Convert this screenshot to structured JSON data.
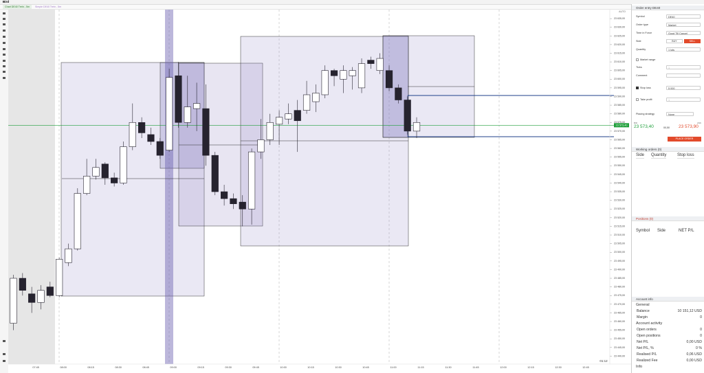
{
  "window": {
    "title": "Bird"
  },
  "tabs": [
    "Chart DE40 Trein - 5m",
    "Simple DE40 Trein - 5m"
  ],
  "chart_toolbar": {
    "timeframes": "Timeframes"
  },
  "chart_data": {
    "type": "candlestick",
    "scale_mode": "AUTO",
    "countdown": "01:12",
    "last_price": {
      "value": 23573.4,
      "label": "23 573,40"
    },
    "last_price_color": "#1e9e3a",
    "up_color": "#ffffff",
    "down_color": "#26232f",
    "x": [
      null,
      null,
      "07:45",
      null,
      null,
      "08:00",
      null,
      null,
      "08:15",
      null,
      null,
      "08:30",
      null,
      null,
      "08:45",
      null,
      null,
      "09:00",
      null,
      null,
      "09:15",
      null,
      null,
      "09:30",
      null,
      null,
      "09:45",
      null,
      null,
      "10:00",
      null,
      null,
      "10:15",
      null,
      null,
      "10:30",
      null,
      null,
      "10:45",
      null,
      null,
      "11:00",
      null,
      null,
      "11:15",
      null,
      null,
      "11:30",
      null,
      null,
      "11:45",
      null,
      null,
      "12:00",
      null,
      null,
      "12:15",
      null,
      null,
      "12:30",
      null,
      null,
      "12:45",
      null,
      null
    ],
    "open": [
      23459,
      23485,
      23476,
      23471,
      23480,
      23475,
      23494,
      23502,
      23534,
      23544,
      23551,
      23543,
      23540,
      23561,
      23575,
      23568,
      23564,
      23559,
      23602,
      23575,
      23583,
      23583,
      23556,
      23535,
      23531,
      23529,
      23525,
      23558,
      23565,
      23574,
      23577,
      23582,
      23582,
      23587,
      23591,
      23605,
      23600,
      23602,
      23595,
      23611,
      23605,
      23605,
      23595,
      23588,
      23570,
      null,
      null,
      null,
      null,
      null,
      null,
      null,
      null,
      null,
      null,
      null,
      null,
      null,
      null,
      null,
      null,
      null,
      null,
      null,
      null
    ],
    "high": [
      23487,
      23488,
      23480,
      23481,
      23483,
      23497,
      23505,
      23537,
      23554,
      23554,
      23552,
      23546,
      23564,
      23586,
      23578,
      23572,
      23566,
      23606,
      23610,
      23602,
      23598,
      23597,
      23558,
      23539,
      23534,
      23533,
      23560,
      23577,
      23580,
      23582,
      23586,
      23588,
      23599,
      23597,
      23608,
      23606,
      23608,
      23607,
      23612,
      23613,
      23615,
      23608,
      23597,
      23590,
      23578,
      null,
      null,
      null,
      null,
      null,
      null,
      null,
      null,
      null,
      null,
      null,
      null,
      null,
      null,
      null,
      null,
      null,
      null,
      null,
      null
    ],
    "low": [
      23455,
      23475,
      23465,
      23467,
      23474,
      23474,
      23492,
      23501,
      23533,
      23542,
      23539,
      23538,
      23539,
      23559,
      23566,
      23562,
      23554,
      23558,
      23572,
      23572,
      23570,
      23550,
      23533,
      23527,
      23525,
      23515,
      23516,
      23554,
      23562,
      23562,
      23574,
      23558,
      23580,
      23581,
      23589,
      23596,
      23592,
      23594,
      23592,
      23606,
      23603,
      23593,
      23586,
      23568,
      23566,
      null,
      null,
      null,
      null,
      null,
      null,
      null,
      null,
      null,
      null,
      null,
      null,
      null,
      null,
      null,
      null,
      null,
      null,
      null,
      null
    ],
    "close": [
      23485,
      23478,
      23471,
      23478,
      23475,
      23496,
      23502,
      23534,
      23544,
      23549,
      23543,
      23540,
      23561,
      23575,
      23569,
      23564,
      23556,
      23601,
      23575,
      23584,
      23586,
      23556,
      23535,
      23531,
      23528,
      23525,
      23558,
      23565,
      23575,
      23578,
      23580,
      23576,
      23591,
      23592,
      23605,
      23602,
      23605,
      23605,
      23609,
      23609,
      23612,
      23595,
      23588,
      23570,
      23575,
      null,
      null,
      null,
      null,
      null,
      null,
      null,
      null,
      null,
      null,
      null,
      null,
      null,
      null,
      null,
      null,
      null,
      null,
      null,
      null
    ],
    "ylim": [
      23436.6,
      23640.2
    ],
    "yticks": [
      {
        "value": 23440,
        "label": "23 440,00"
      },
      {
        "value": 23445,
        "label": "23 445,00"
      },
      {
        "value": 23450,
        "label": "23 450,00"
      },
      {
        "value": 23455,
        "label": "23 455,00"
      },
      {
        "value": 23460,
        "label": "23 460,00"
      },
      {
        "value": 23465,
        "label": "23 465,00"
      },
      {
        "value": 23470,
        "label": "23 470,00"
      },
      {
        "value": 23475,
        "label": "23 475,00"
      },
      {
        "value": 23480,
        "label": "23 480,00"
      },
      {
        "value": 23485,
        "label": "23 485,00"
      },
      {
        "value": 23490,
        "label": "23 490,00"
      },
      {
        "value": 23495,
        "label": "23 495,00"
      },
      {
        "value": 23500,
        "label": "23 500,00"
      },
      {
        "value": 23505,
        "label": "23 505,00"
      },
      {
        "value": 23510,
        "label": "23 510,00"
      },
      {
        "value": 23515,
        "label": "23 515,00"
      },
      {
        "value": 23520,
        "label": "23 520,00"
      },
      {
        "value": 23525,
        "label": "23 525,00"
      },
      {
        "value": 23530,
        "label": "23 530,00"
      },
      {
        "value": 23535,
        "label": "23 535,00"
      },
      {
        "value": 23540,
        "label": "23 540,00"
      },
      {
        "value": 23545,
        "label": "23 545,00"
      },
      {
        "value": 23550,
        "label": "23 550,00"
      },
      {
        "value": 23555,
        "label": "23 555,00"
      },
      {
        "value": 23560,
        "label": "23 560,00"
      },
      {
        "value": 23565,
        "label": "23 565,00"
      },
      {
        "value": 23570,
        "label": "23 570,00"
      },
      {
        "value": 23575,
        "label": "23 575,00"
      },
      {
        "value": 23580,
        "label": "23 580,00"
      },
      {
        "value": 23585,
        "label": "23 585,00"
      },
      {
        "value": 23590,
        "label": "23 590,00"
      },
      {
        "value": 23595,
        "label": "23 595,00"
      },
      {
        "value": 23600,
        "label": "23 600,00"
      },
      {
        "value": 23605,
        "label": "23 605,00"
      },
      {
        "value": 23610,
        "label": "23 610,00"
      },
      {
        "value": 23615,
        "label": "23 615,00"
      },
      {
        "value": 23620,
        "label": "23 620,00"
      },
      {
        "value": 23625,
        "label": "23 625,00"
      },
      {
        "value": 23630,
        "label": "23 630,00"
      },
      {
        "value": 23635,
        "label": "23 635,00"
      }
    ]
  },
  "order_entry": {
    "title": "Order entry DE40",
    "fields": [
      {
        "label": "Symbol",
        "value": "DE40"
      },
      {
        "label": "Order type",
        "value": "Market"
      },
      {
        "label": "Time in Force",
        "value": "Good Till Cancel"
      }
    ],
    "side_label": "Side",
    "buy": "BUY",
    "sell": "SELL",
    "quantity_label": "Quantity",
    "quantity": "1 lots",
    "market_range": "Market range",
    "ticks_label": "Ticks",
    "ticks": "1",
    "comment_label": "Comment",
    "stop_loss_label": "Stop loss",
    "stop_loss": "5 000",
    "take_profit_label": "Take profit",
    "take_profit": "1",
    "placing_strategy_label": "Placing strategy",
    "placing_strategy": "None",
    "bid_label": "BID",
    "bid": "23 573,40",
    "spread": "00,50",
    "ask_label": "ASK",
    "ask": "23 573,90",
    "place_order": "PLACE ORDER"
  },
  "working_orders": {
    "title": "Working orders (0)",
    "columns": [
      "Side",
      "Quantity",
      "Stop loss"
    ]
  },
  "positions": {
    "title": "Positions (0)",
    "columns": [
      "Symbol",
      "Side",
      "NET P/L"
    ]
  },
  "account_info": {
    "title": "Account info",
    "sections": [
      {
        "name": "General",
        "rows": [
          [
            "Balance",
            "10 151,12 USD"
          ],
          [
            "Margin",
            "0"
          ]
        ]
      },
      {
        "name": "Account activity",
        "rows": [
          [
            "Open orders",
            "0"
          ],
          [
            "Open positions",
            "0"
          ],
          [
            "Net P/L",
            "0,00 USD"
          ],
          [
            "Net P/L, %",
            "0 %"
          ],
          [
            "Realised P/L",
            "0,06 USD"
          ],
          [
            "Realized Fee",
            "0,00 USD"
          ]
        ]
      },
      {
        "name": "Info",
        "rows": []
      }
    ]
  }
}
